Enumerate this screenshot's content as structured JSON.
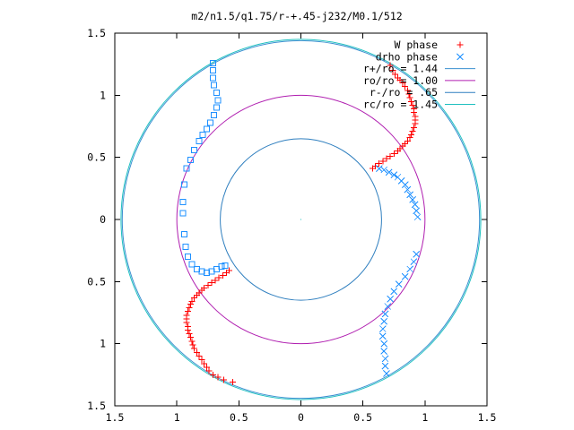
{
  "chart_data": {
    "type": "scatter",
    "title": "m2/n1.5/q1.75/r-+.45-j232/M0.1/512",
    "xlabel": "",
    "ylabel": "",
    "xlim": [
      -1.5,
      1.5
    ],
    "ylim": [
      -1.5,
      1.5
    ],
    "x_tick_values": [
      -1.5,
      -1,
      -0.5,
      0,
      0.5,
      1,
      1.5
    ],
    "x_tick_labels": [
      "1.5",
      "1",
      "0.5",
      "0",
      "0.5",
      "1",
      "1.5"
    ],
    "y_tick_values": [
      1.5,
      1,
      0.5,
      0,
      -0.5,
      -1,
      -1.5
    ],
    "y_tick_labels": [
      "1.5",
      "1",
      "0.5",
      "0",
      "0.5",
      "1",
      "1.5"
    ],
    "grid": false,
    "legend_position": "top-right",
    "series": [
      {
        "name": "W phase",
        "kind": "points",
        "marker": "plus",
        "color": "#ff0000",
        "points": [
          [
            0.72,
            1.24
          ],
          [
            0.74,
            1.2
          ],
          [
            0.76,
            1.17
          ],
          [
            0.78,
            1.14
          ],
          [
            0.8,
            1.12
          ],
          [
            0.82,
            1.1
          ],
          [
            0.84,
            1.07
          ],
          [
            0.86,
            1.04
          ],
          [
            0.87,
            1.01
          ],
          [
            0.88,
            0.98
          ],
          [
            0.89,
            0.95
          ],
          [
            0.9,
            0.92
          ],
          [
            0.91,
            0.89
          ],
          [
            0.91,
            0.86
          ],
          [
            0.92,
            0.83
          ],
          [
            0.92,
            0.8
          ],
          [
            0.92,
            0.77
          ],
          [
            0.91,
            0.74
          ],
          [
            0.9,
            0.71
          ],
          [
            0.89,
            0.68
          ],
          [
            0.88,
            0.66
          ],
          [
            0.86,
            0.63
          ],
          [
            0.84,
            0.61
          ],
          [
            0.82,
            0.59
          ],
          [
            0.8,
            0.57
          ],
          [
            0.78,
            0.55
          ],
          [
            0.75,
            0.53
          ],
          [
            0.72,
            0.51
          ],
          [
            0.69,
            0.49
          ],
          [
            0.66,
            0.47
          ],
          [
            0.63,
            0.45
          ],
          [
            0.6,
            0.43
          ],
          [
            0.58,
            0.41
          ],
          [
            -0.58,
            -0.41
          ],
          [
            -0.6,
            -0.43
          ],
          [
            -0.63,
            -0.45
          ],
          [
            -0.66,
            -0.47
          ],
          [
            -0.69,
            -0.49
          ],
          [
            -0.72,
            -0.51
          ],
          [
            -0.75,
            -0.53
          ],
          [
            -0.78,
            -0.55
          ],
          [
            -0.8,
            -0.57
          ],
          [
            -0.82,
            -0.59
          ],
          [
            -0.84,
            -0.61
          ],
          [
            -0.86,
            -0.63
          ],
          [
            -0.88,
            -0.66
          ],
          [
            -0.89,
            -0.68
          ],
          [
            -0.9,
            -0.71
          ],
          [
            -0.91,
            -0.74
          ],
          [
            -0.92,
            -0.77
          ],
          [
            -0.92,
            -0.8
          ],
          [
            -0.92,
            -0.83
          ],
          [
            -0.91,
            -0.86
          ],
          [
            -0.91,
            -0.89
          ],
          [
            -0.9,
            -0.92
          ],
          [
            -0.89,
            -0.95
          ],
          [
            -0.88,
            -0.98
          ],
          [
            -0.87,
            -1.01
          ],
          [
            -0.86,
            -1.04
          ],
          [
            -0.84,
            -1.07
          ],
          [
            -0.82,
            -1.1
          ],
          [
            -0.8,
            -1.13
          ],
          [
            -0.78,
            -1.16
          ],
          [
            -0.76,
            -1.19
          ],
          [
            -0.74,
            -1.22
          ],
          [
            -0.71,
            -1.25
          ],
          [
            -0.67,
            -1.27
          ],
          [
            -0.62,
            -1.29
          ],
          [
            -0.55,
            -1.31
          ]
        ]
      },
      {
        "name": "drho phase",
        "kind": "points",
        "marker": "cross",
        "color": "#1e90ff",
        "points": [
          [
            0.63,
            0.41
          ],
          [
            0.67,
            0.4
          ],
          [
            0.71,
            0.38
          ],
          [
            0.75,
            0.36
          ],
          [
            0.78,
            0.34
          ],
          [
            0.81,
            0.31
          ],
          [
            0.84,
            0.28
          ],
          [
            0.86,
            0.24
          ],
          [
            0.88,
            0.2
          ],
          [
            0.9,
            0.16
          ],
          [
            0.92,
            0.12
          ],
          [
            0.93,
            0.07
          ],
          [
            0.94,
            0.02
          ],
          [
            0.93,
            -0.28
          ],
          [
            0.91,
            -0.34
          ],
          [
            0.88,
            -0.4
          ],
          [
            0.84,
            -0.46
          ],
          [
            0.79,
            -0.52
          ],
          [
            0.75,
            -0.58
          ],
          [
            0.72,
            -0.64
          ],
          [
            0.7,
            -0.7
          ],
          [
            0.68,
            -0.76
          ],
          [
            0.67,
            -0.82
          ],
          [
            0.66,
            -0.88
          ],
          [
            0.66,
            -0.94
          ],
          [
            0.67,
            -1.0
          ],
          [
            0.67,
            -1.06
          ],
          [
            0.68,
            -1.12
          ],
          [
            0.68,
            -1.18
          ],
          [
            0.69,
            -1.24
          ]
        ]
      },
      {
        "name": "",
        "kind": "points",
        "marker": "square",
        "color": "#1e90ff",
        "points": [
          [
            -0.71,
            1.26
          ],
          [
            -0.71,
            1.2
          ],
          [
            -0.71,
            1.14
          ],
          [
            -0.7,
            1.08
          ],
          [
            -0.68,
            1.02
          ],
          [
            -0.67,
            0.96
          ],
          [
            -0.68,
            0.9
          ],
          [
            -0.7,
            0.84
          ],
          [
            -0.73,
            0.78
          ],
          [
            -0.76,
            0.73
          ],
          [
            -0.79,
            0.68
          ],
          [
            -0.82,
            0.63
          ],
          [
            -0.86,
            0.56
          ],
          [
            -0.89,
            0.48
          ],
          [
            -0.92,
            0.41
          ],
          [
            -0.94,
            0.28
          ],
          [
            -0.95,
            0.14
          ],
          [
            -0.95,
            0.05
          ],
          [
            -0.94,
            -0.12
          ],
          [
            -0.93,
            -0.22
          ],
          [
            -0.91,
            -0.3
          ],
          [
            -0.88,
            -0.36
          ],
          [
            -0.84,
            -0.4
          ],
          [
            -0.8,
            -0.42
          ],
          [
            -0.76,
            -0.43
          ],
          [
            -0.72,
            -0.42
          ],
          [
            -0.68,
            -0.4
          ],
          [
            -0.64,
            -0.38
          ],
          [
            -0.61,
            -0.37
          ]
        ]
      },
      {
        "name": "r+/ro = 1.44",
        "kind": "circle",
        "radius": 1.44,
        "color": "#3a8fd0"
      },
      {
        "name": "ro/ro = 1.00",
        "kind": "circle",
        "radius": 1.0,
        "color": "#b01fb0"
      },
      {
        "name": "r-/ro = .65",
        "kind": "circle",
        "radius": 0.65,
        "color": "#2f7fbf"
      },
      {
        "name": "rc/ro = 1.45",
        "kind": "circle",
        "radius": 1.45,
        "color": "#1ec0c0"
      }
    ]
  }
}
